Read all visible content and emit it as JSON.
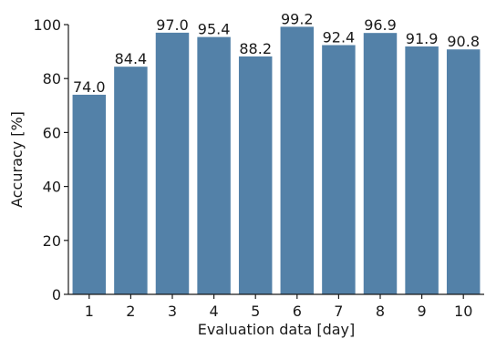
{
  "chart_data": {
    "type": "bar",
    "categories": [
      "1",
      "2",
      "3",
      "4",
      "5",
      "6",
      "7",
      "8",
      "9",
      "10"
    ],
    "values": [
      74.0,
      84.4,
      97.0,
      95.4,
      88.2,
      99.2,
      92.4,
      96.9,
      91.9,
      90.8
    ],
    "value_labels": [
      "74.0",
      "84.4",
      "97.0",
      "95.4",
      "88.2",
      "99.2",
      "92.4",
      "96.9",
      "91.9",
      "90.8"
    ],
    "xlabel": "Evaluation data [day]",
    "ylabel": "Accuracy [%]",
    "ylim": [
      0,
      100
    ],
    "yticks": [
      0,
      20,
      40,
      60,
      80,
      100
    ],
    "ytick_labels": [
      "0",
      "20",
      "40",
      "60",
      "80",
      "100"
    ],
    "grid": false,
    "bar_color": "#5381a8"
  }
}
